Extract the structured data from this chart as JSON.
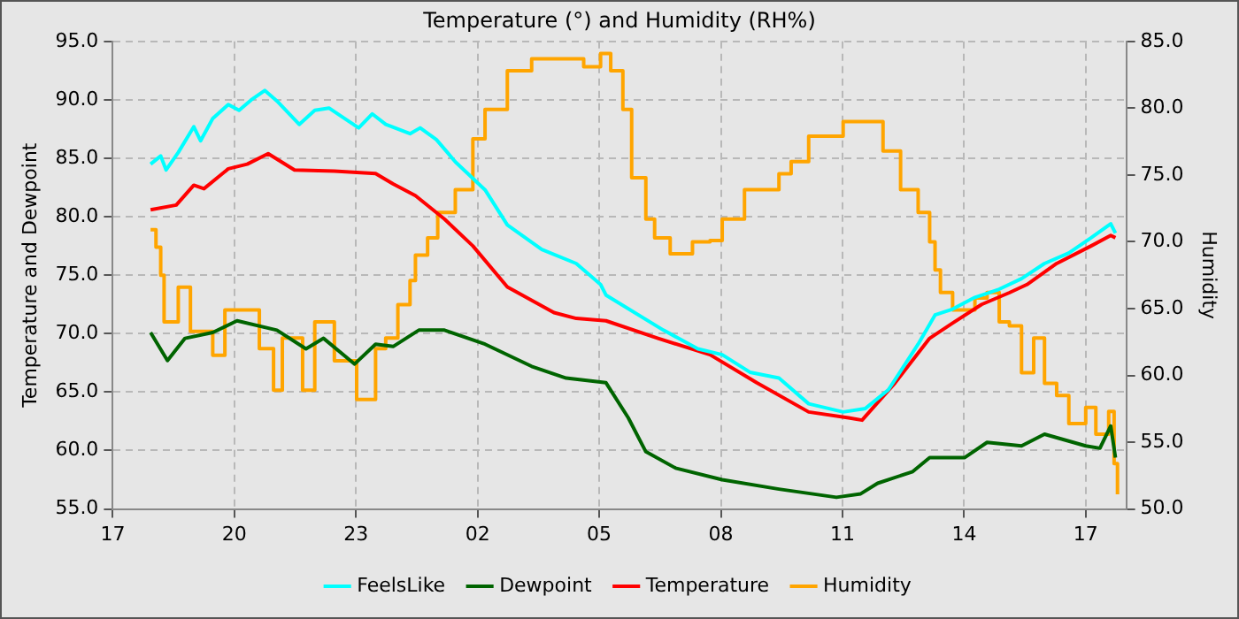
{
  "chart_data": {
    "type": "line",
    "title": "Temperature (°) and Humidity (RH%)",
    "ylabel": "Temperature and Dewpoint",
    "y2label": "Humidity",
    "xlim": [
      "--01-01T17:00",
      "--01-02T18:00"
    ],
    "xticks": [
      {
        "value": "--01-01T17:00",
        "label": "17"
      },
      {
        "value": "--01-01T20:00",
        "label": "20"
      },
      {
        "value": "--01-01T23:00",
        "label": "23"
      },
      {
        "value": "--01-02T02:00",
        "label": "02"
      },
      {
        "value": "--01-02T05:00",
        "label": "05"
      },
      {
        "value": "--01-02T08:00",
        "label": "08"
      },
      {
        "value": "--01-02T11:00",
        "label": "11"
      },
      {
        "value": "--01-02T14:00",
        "label": "14"
      },
      {
        "value": "--01-02T17:00",
        "label": "17"
      }
    ],
    "ylim": [
      55,
      95
    ],
    "yticks": [
      {
        "value": 55,
        "label": "55.0"
      },
      {
        "value": 60,
        "label": "60.0"
      },
      {
        "value": 65,
        "label": "65.0"
      },
      {
        "value": 70,
        "label": "70.0"
      },
      {
        "value": 75,
        "label": "75.0"
      },
      {
        "value": 80,
        "label": "80.0"
      },
      {
        "value": 85,
        "label": "85.0"
      },
      {
        "value": 90,
        "label": "90.0"
      },
      {
        "value": 95,
        "label": "95.0"
      }
    ],
    "y2lim": [
      50,
      85
    ],
    "y2ticks": [
      {
        "value": 50,
        "label": "50.0"
      },
      {
        "value": 55,
        "label": "55.0"
      },
      {
        "value": 60,
        "label": "60.0"
      },
      {
        "value": 65,
        "label": "65.0"
      },
      {
        "value": 70,
        "label": "70.0"
      },
      {
        "value": 75,
        "label": "75.0"
      },
      {
        "value": 80,
        "label": "80.0"
      },
      {
        "value": 85,
        "label": "85.0"
      }
    ],
    "grid": true,
    "legend": "bottom",
    "marker": "none",
    "line_style": "solid",
    "series": [
      {
        "name": "FeelsLike",
        "color": "#00ffff",
        "x": [
          "--01-01T17:56",
          "--01-01T18:11",
          "--01-01T18:19",
          "--01-01T18:37",
          "--01-01T19:00",
          "--01-01T19:10",
          "--01-01T19:28",
          "--01-01T19:51",
          "--01-01T20:07",
          "--01-01T20:25",
          "--01-01T20:45",
          "--01-01T21:03",
          "--01-01T21:36",
          "--01-01T21:59",
          "--01-01T22:20",
          "--01-01T22:38",
          "--01-01T23:04",
          "--01-01T23:24",
          "--01-01T23:44",
          "--01-02T00:20",
          "--01-02T00:35",
          "--01-02T00:59",
          "--01-02T01:27",
          "--01-02T02:11",
          "--01-02T02:44",
          "--01-02T03:35",
          "--01-02T04:26",
          "--01-02T05:02",
          "--01-02T05:10",
          "--01-02T06:35",
          "--01-02T07:26",
          "--01-02T08:02",
          "--01-02T08:43",
          "--01-02T09:26",
          "--01-02T10:10",
          "--01-02T11:01",
          "--01-02T11:34",
          "--01-02T12:08",
          "--01-02T12:52",
          "--01-02T13:17",
          "--01-02T13:43",
          "--01-02T14:16",
          "--01-02T14:52",
          "--01-02T15:25",
          "--01-02T15:59",
          "--01-02T16:35",
          "--01-02T17:08",
          "--01-02T17:37",
          "--01-02T17:44"
        ],
        "values": [
          84.5,
          85.2,
          84.0,
          85.5,
          87.7,
          86.5,
          88.4,
          89.6,
          89.1,
          90.0,
          90.8,
          89.9,
          87.9,
          89.1,
          89.3,
          88.6,
          87.6,
          88.8,
          87.9,
          87.1,
          87.6,
          86.6,
          84.7,
          82.3,
          79.3,
          77.2,
          76.0,
          74.2,
          73.3,
          70.3,
          68.7,
          68.2,
          66.7,
          66.2,
          64.0,
          63.3,
          63.6,
          65.2,
          69.1,
          71.6,
          72.1,
          73.1,
          73.8,
          74.7,
          76.0,
          76.9,
          78.2,
          79.4,
          78.6
        ]
      },
      {
        "name": "Dewpoint",
        "color": "#006400",
        "x": [
          "--01-01T17:56",
          "--01-01T18:21",
          "--01-01T18:47",
          "--01-01T19:28",
          "--01-01T20:04",
          "--01-01T21:03",
          "--01-01T21:46",
          "--01-01T22:12",
          "--01-01T22:58",
          "--01-01T23:29",
          "--01-01T23:55",
          "--01-02T00:33",
          "--01-02T01:11",
          "--01-02T02:11",
          "--01-02T03:20",
          "--01-02T04:11",
          "--01-02T05:10",
          "--01-02T05:43",
          "--01-02T06:09",
          "--01-02T06:53",
          "--01-02T08:02",
          "--01-02T09:26",
          "--01-02T10:51",
          "--01-02T11:27",
          "--01-02T11:52",
          "--01-02T12:44",
          "--01-02T13:09",
          "--01-02T14:01",
          "--01-02T14:34",
          "--01-02T15:25",
          "--01-02T15:59",
          "--01-02T17:00",
          "--01-02T17:21",
          "--01-02T17:37",
          "--01-02T17:44"
        ],
        "values": [
          70.1,
          67.7,
          69.6,
          70.1,
          71.1,
          70.3,
          68.7,
          69.6,
          67.4,
          69.1,
          68.9,
          70.3,
          70.3,
          69.1,
          67.2,
          66.2,
          65.8,
          62.8,
          59.9,
          58.5,
          57.5,
          56.7,
          56.0,
          56.3,
          57.2,
          58.2,
          59.4,
          59.4,
          60.7,
          60.4,
          61.4,
          60.4,
          60.2,
          62.1,
          59.4
        ]
      },
      {
        "name": "Temperature",
        "color": "#ff0000",
        "x": [
          "--01-01T17:56",
          "--01-01T18:34",
          "--01-01T19:00",
          "--01-01T19:15",
          "--01-01T19:51",
          "--01-01T20:19",
          "--01-01T20:50",
          "--01-01T21:29",
          "--01-01T22:28",
          "--01-01T23:29",
          "--01-01T23:55",
          "--01-02T00:28",
          "--01-02T01:11",
          "--01-02T01:53",
          "--01-02T02:44",
          "--01-02T03:53",
          "--01-02T04:26",
          "--01-02T05:10",
          "--01-02T06:27",
          "--01-02T07:44",
          "--01-02T08:53",
          "--01-02T10:10",
          "--01-02T11:09",
          "--01-02T11:29",
          "--01-02T12:18",
          "--01-02T13:09",
          "--01-02T13:43",
          "--01-02T14:26",
          "--01-02T15:07",
          "--01-02T15:33",
          "--01-02T16:17",
          "--01-02T17:08",
          "--01-02T17:37",
          "--01-02T17:44"
        ],
        "values": [
          80.6,
          81.0,
          82.7,
          82.4,
          84.1,
          84.5,
          85.4,
          84.0,
          83.9,
          83.7,
          82.8,
          81.8,
          79.8,
          77.5,
          74.0,
          71.8,
          71.3,
          71.1,
          69.6,
          68.2,
          65.8,
          63.3,
          62.8,
          62.6,
          65.8,
          69.6,
          70.9,
          72.5,
          73.5,
          74.2,
          76.0,
          77.5,
          78.4,
          78.2
        ]
      },
      {
        "name": "Humidity",
        "type": "step",
        "axis": "y2",
        "color": "#ffa500",
        "x": [
          "--01-01T17:56",
          "--01-01T18:04",
          "--01-01T18:11",
          "--01-01T18:16",
          "--01-01T18:37",
          "--01-01T18:55",
          "--01-01T19:28",
          "--01-01T19:46",
          "--01-01T20:11",
          "--01-01T20:37",
          "--01-01T20:58",
          "--01-01T21:11",
          "--01-01T21:41",
          "--01-01T21:59",
          "--01-01T22:28",
          "--01-01T23:01",
          "--01-01T23:29",
          "--01-01T23:44",
          "--01-02T00:02",
          "--01-02T00:20",
          "--01-02T00:28",
          "--01-02T00:46",
          "--01-02T01:01",
          "--01-02T01:27",
          "--01-02T01:53",
          "--01-02T02:11",
          "--01-02T02:44",
          "--01-02T03:20",
          "--01-02T04:01",
          "--01-02T04:37",
          "--01-02T05:02",
          "--01-02T05:17",
          "--01-02T05:35",
          "--01-02T05:48",
          "--01-02T06:09",
          "--01-02T06:22",
          "--01-02T06:45",
          "--01-02T07:18",
          "--01-02T07:44",
          "--01-02T08:02",
          "--01-02T08:35",
          "--01-02T09:26",
          "--01-02T09:44",
          "--01-02T10:10",
          "--01-02T11:01",
          "--01-02T11:42",
          "--01-02T12:00",
          "--01-02T12:26",
          "--01-02T12:52",
          "--01-02T13:09",
          "--01-02T13:17",
          "--01-02T13:25",
          "--01-02T13:43",
          "--01-02T14:16",
          "--01-02T14:34",
          "--01-02T14:52",
          "--01-02T15:07",
          "--01-02T15:25",
          "--01-02T15:43",
          "--01-02T15:59",
          "--01-02T16:17",
          "--01-02T16:35",
          "--01-02T17:00",
          "--01-02T17:15",
          "--01-02T17:34",
          "--01-02T17:42",
          "--01-02T17:47"
        ],
        "values": [
          70.9,
          69.6,
          67.5,
          64.0,
          66.6,
          63.3,
          61.5,
          64.9,
          64.9,
          62.0,
          58.9,
          62.8,
          58.9,
          64.0,
          61.1,
          58.2,
          62.0,
          62.8,
          65.3,
          67.1,
          69.0,
          70.3,
          72.2,
          73.9,
          77.7,
          79.9,
          82.8,
          83.7,
          83.7,
          83.1,
          84.1,
          82.8,
          79.9,
          74.8,
          71.7,
          70.3,
          69.1,
          70.0,
          70.1,
          71.7,
          73.9,
          75.1,
          76.0,
          77.9,
          79.0,
          79.0,
          76.8,
          73.9,
          72.2,
          70.0,
          67.9,
          66.2,
          64.9,
          65.8,
          66.2,
          64.0,
          63.7,
          60.2,
          62.8,
          59.4,
          58.5,
          56.4,
          57.6,
          55.6,
          57.3,
          53.4,
          51.1
        ]
      }
    ]
  }
}
